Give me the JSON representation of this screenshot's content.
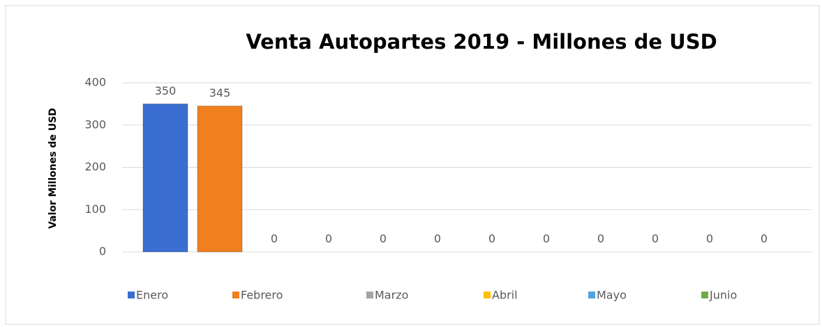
{
  "chart_data": {
    "type": "bar",
    "title": "Venta Autopartes 2019 - Millones de USD",
    "y_label": "Valor Millones de USD",
    "categories": [
      "Enero",
      "Febrero",
      "Marzo",
      "Abril",
      "Mayo",
      "Junio",
      null,
      null,
      null,
      null,
      null,
      null
    ],
    "values": [
      350,
      345,
      0,
      0,
      0,
      0,
      0,
      0,
      0,
      0,
      0,
      0
    ],
    "colors": [
      "#3a6fd1",
      "#f07f1e",
      "#a5a5a5",
      "#ffc000",
      "#4fa3de",
      "#70ad47",
      "#264478",
      "#9e480e",
      "#636363",
      "#997300",
      "#255e91",
      "#43682b"
    ],
    "ylim": [
      0,
      400
    ],
    "yticks": [
      0,
      100,
      200,
      300,
      400
    ],
    "grid": true,
    "legend": "bottom"
  }
}
